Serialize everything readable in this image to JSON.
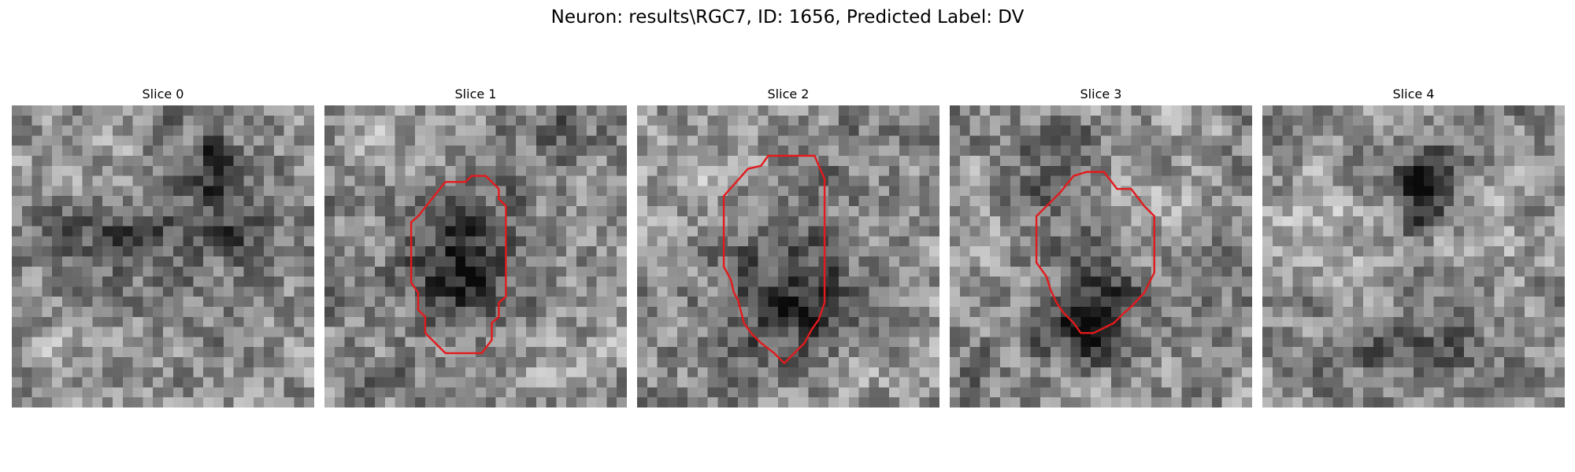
{
  "figure": {
    "suptitle": "Neuron: results\\RGC7, ID: 1656, Predicted Label: DV"
  },
  "chart_data": {
    "type": "heatmap",
    "colormap": "gray",
    "grid": false,
    "contour_color": "#e31a1c",
    "panels": [
      {
        "title": "Slice 0",
        "seed": 11,
        "dark_blobs": [
          [
            12,
            12,
            9,
            5,
            0.22
          ],
          [
            20,
            6,
            2,
            3,
            0.32
          ],
          [
            18,
            4,
            4,
            4,
            0.14
          ],
          [
            22,
            12,
            4,
            2,
            0.18
          ]
        ],
        "light_blobs": [
          [
            8,
            6,
            7,
            4,
            0.12
          ],
          [
            6,
            25,
            6,
            3,
            0.08
          ]
        ],
        "contour": []
      },
      {
        "title": "Slice 1",
        "seed": 23,
        "dark_blobs": [
          [
            13,
            14,
            6,
            6,
            0.34
          ],
          [
            14,
            18,
            5,
            4,
            0.12
          ],
          [
            22,
            2,
            4,
            3,
            0.16
          ],
          [
            4,
            27,
            5,
            2,
            0.14
          ]
        ],
        "light_blobs": [
          [
            7,
            4,
            6,
            3,
            0.1
          ],
          [
            26,
            24,
            5,
            3,
            0.1
          ]
        ],
        "contour": [
          [
            9.3,
            11
          ],
          [
            12,
            7.6
          ],
          [
            14,
            7.6
          ],
          [
            14.6,
            7
          ],
          [
            16,
            7
          ],
          [
            17.3,
            8.3
          ],
          [
            17.3,
            9.3
          ],
          [
            18,
            10
          ],
          [
            18,
            19
          ],
          [
            17.3,
            19.6
          ],
          [
            17.3,
            21
          ],
          [
            16.6,
            21.6
          ],
          [
            16.6,
            23.3
          ],
          [
            15.6,
            24.6
          ],
          [
            14,
            24.6
          ],
          [
            12,
            24.6
          ],
          [
            10.6,
            23.2
          ],
          [
            10,
            22.6
          ],
          [
            10,
            21
          ],
          [
            9.3,
            20.3
          ],
          [
            9.3,
            18.6
          ],
          [
            8.6,
            17.6
          ],
          [
            8.6,
            16.3
          ],
          [
            8.6,
            11.6
          ]
        ]
      },
      {
        "title": "Slice 2",
        "seed": 37,
        "dark_blobs": [
          [
            15,
            18,
            7,
            7,
            0.3
          ],
          [
            11,
            22,
            4,
            4,
            0.1
          ],
          [
            20,
            4,
            4,
            3,
            0.08
          ]
        ],
        "light_blobs": [
          [
            6,
            6,
            6,
            4,
            0.12
          ],
          [
            24,
            26,
            6,
            3,
            0.1
          ]
        ],
        "contour": [
          [
            8.6,
            9
          ],
          [
            11,
            6.3
          ],
          [
            12.3,
            6
          ],
          [
            13,
            5
          ],
          [
            17.6,
            5
          ],
          [
            18.3,
            6.6
          ],
          [
            18.6,
            7.3
          ],
          [
            18.6,
            19.6
          ],
          [
            18,
            21.3
          ],
          [
            17.3,
            22.3
          ],
          [
            16.6,
            23.6
          ],
          [
            15.6,
            24.6
          ],
          [
            14.6,
            25.6
          ],
          [
            13.6,
            24.6
          ],
          [
            12.3,
            23.6
          ],
          [
            11.3,
            22.6
          ],
          [
            10.6,
            21.6
          ],
          [
            10,
            19.3
          ],
          [
            9.6,
            18.6
          ],
          [
            9.3,
            17.3
          ],
          [
            8.6,
            16
          ],
          [
            8.6,
            11
          ]
        ]
      },
      {
        "title": "Slice 3",
        "seed": 53,
        "dark_blobs": [
          [
            14,
            20,
            4,
            4,
            0.42
          ],
          [
            11,
            22,
            4,
            3,
            0.18
          ],
          [
            10,
            8,
            4,
            7,
            0.2
          ],
          [
            3,
            27,
            4,
            3,
            0.12
          ]
        ],
        "light_blobs": [
          [
            20,
            8,
            6,
            4,
            0.12
          ],
          [
            4,
            10,
            4,
            4,
            0.08
          ]
        ],
        "contour": [
          [
            8.6,
            11
          ],
          [
            10,
            9.6
          ],
          [
            11,
            8.6
          ],
          [
            12.3,
            7
          ],
          [
            13.6,
            6.6
          ],
          [
            15.3,
            6.6
          ],
          [
            16.6,
            8.3
          ],
          [
            18,
            8.3
          ],
          [
            19.3,
            10
          ],
          [
            20.3,
            11
          ],
          [
            20.3,
            16.6
          ],
          [
            19.3,
            18.6
          ],
          [
            18,
            20
          ],
          [
            17.3,
            20.6
          ],
          [
            16.3,
            21.6
          ],
          [
            14.3,
            22.6
          ],
          [
            13,
            22.6
          ],
          [
            12.3,
            21.6
          ],
          [
            11.3,
            20.6
          ],
          [
            10.6,
            19.6
          ],
          [
            10,
            18.3
          ],
          [
            9.6,
            17
          ],
          [
            8.6,
            15.6
          ]
        ]
      },
      {
        "title": "Slice 4",
        "seed": 71,
        "dark_blobs": [
          [
            15,
            8,
            3,
            4,
            0.42
          ],
          [
            17,
            6,
            2,
            2,
            0.22
          ],
          [
            14,
            24,
            9,
            3,
            0.16
          ],
          [
            20,
            3,
            3,
            3,
            0.1
          ]
        ],
        "light_blobs": [
          [
            6,
            12,
            6,
            5,
            0.16
          ],
          [
            24,
            14,
            4,
            5,
            0.1
          ]
        ],
        "contour": []
      }
    ]
  }
}
